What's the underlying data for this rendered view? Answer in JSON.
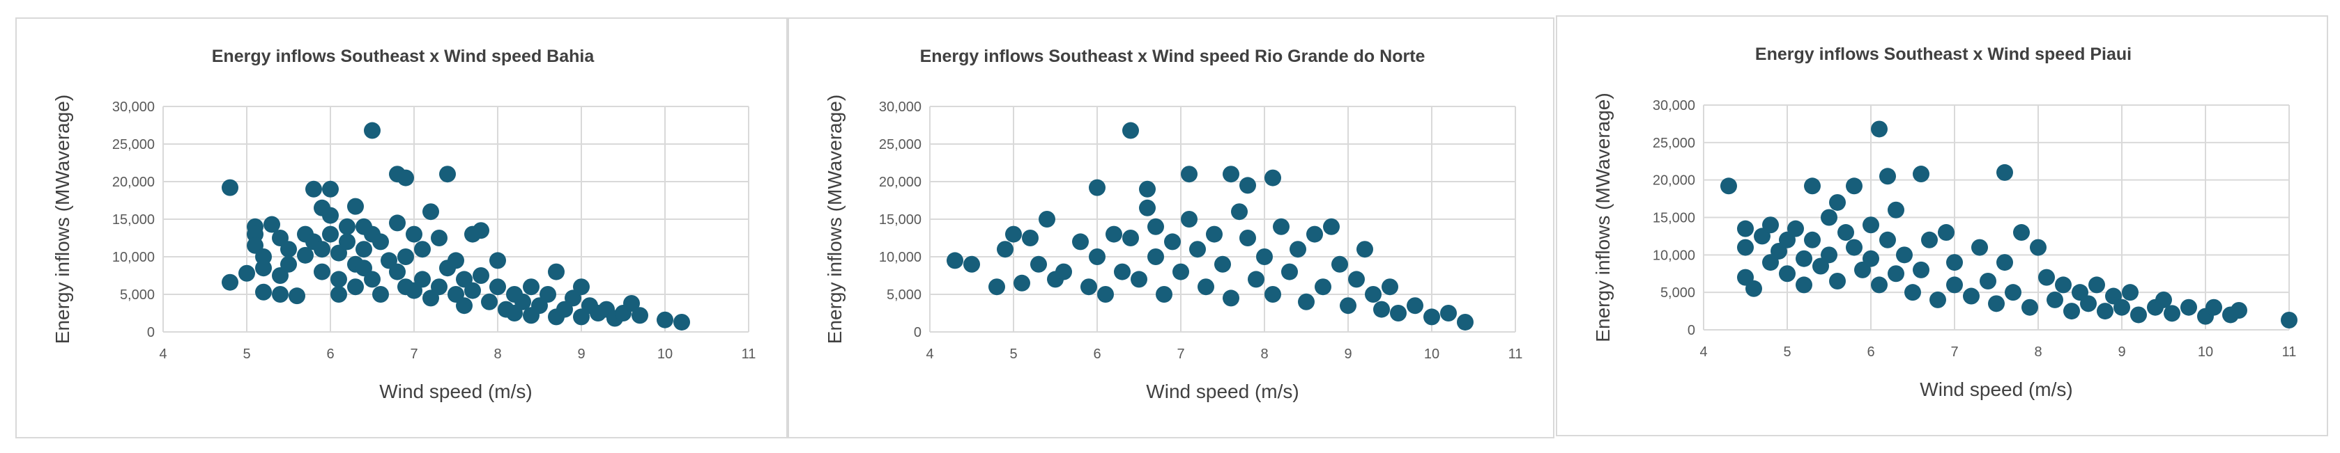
{
  "style": {
    "marker_color": "#175e7a",
    "gridline_color": "#d9d9d9",
    "text_color": "#404040"
  },
  "chart_data": [
    {
      "type": "scatter",
      "title": "Energy inflows Southeast x Wind speed Bahia",
      "xlabel": "Wind speed (m/s)",
      "ylabel": "Energy inflows (MWaverage)",
      "xlim": [
        4,
        11
      ],
      "ylim": [
        0,
        30000
      ],
      "xticks": [
        "4",
        "5",
        "6",
        "7",
        "8",
        "9",
        "10",
        "11"
      ],
      "yticks": [
        "0",
        "5,000",
        "10,000",
        "15,000",
        "20,000",
        "25,000",
        "30,000"
      ],
      "grid": true,
      "legend": "none",
      "points": [
        [
          4.8,
          19200
        ],
        [
          4.8,
          6600
        ],
        [
          5.0,
          7800
        ],
        [
          5.1,
          14000
        ],
        [
          5.1,
          13000
        ],
        [
          5.1,
          11500
        ],
        [
          5.2,
          10000
        ],
        [
          5.2,
          8500
        ],
        [
          5.3,
          14300
        ],
        [
          5.2,
          5300
        ],
        [
          5.4,
          12500
        ],
        [
          5.4,
          7500
        ],
        [
          5.4,
          5000
        ],
        [
          5.5,
          11000
        ],
        [
          5.5,
          9000
        ],
        [
          5.6,
          4800
        ],
        [
          5.7,
          13000
        ],
        [
          5.7,
          10200
        ],
        [
          5.8,
          19000
        ],
        [
          5.8,
          12000
        ],
        [
          5.9,
          16500
        ],
        [
          5.9,
          11000
        ],
        [
          5.9,
          8000
        ],
        [
          6.0,
          19000
        ],
        [
          6.0,
          15500
        ],
        [
          6.0,
          13000
        ],
        [
          6.1,
          10500
        ],
        [
          6.1,
          7000
        ],
        [
          6.1,
          5000
        ],
        [
          6.2,
          14000
        ],
        [
          6.2,
          12000
        ],
        [
          6.3,
          9000
        ],
        [
          6.3,
          6000
        ],
        [
          6.3,
          16700
        ],
        [
          6.4,
          14000
        ],
        [
          6.4,
          11000
        ],
        [
          6.4,
          8500
        ],
        [
          6.5,
          26800
        ],
        [
          6.5,
          13000
        ],
        [
          6.5,
          7000
        ],
        [
          6.6,
          12000
        ],
        [
          6.6,
          5000
        ],
        [
          6.7,
          9500
        ],
        [
          6.8,
          21000
        ],
        [
          6.8,
          14500
        ],
        [
          6.8,
          8000
        ],
        [
          6.9,
          20500
        ],
        [
          6.9,
          10000
        ],
        [
          6.9,
          6000
        ],
        [
          7.0,
          13000
        ],
        [
          7.0,
          5500
        ],
        [
          7.1,
          11000
        ],
        [
          7.1,
          7000
        ],
        [
          7.2,
          16000
        ],
        [
          7.2,
          4500
        ],
        [
          7.3,
          12500
        ],
        [
          7.3,
          6000
        ],
        [
          7.4,
          21000
        ],
        [
          7.4,
          8500
        ],
        [
          7.5,
          9500
        ],
        [
          7.5,
          5000
        ],
        [
          7.6,
          7000
        ],
        [
          7.6,
          3500
        ],
        [
          7.7,
          13000
        ],
        [
          7.7,
          5500
        ],
        [
          7.8,
          13500
        ],
        [
          7.8,
          7500
        ],
        [
          7.9,
          4000
        ],
        [
          8.0,
          9500
        ],
        [
          8.0,
          6000
        ],
        [
          8.1,
          3000
        ],
        [
          8.2,
          5000
        ],
        [
          8.2,
          2500
        ],
        [
          8.3,
          4000
        ],
        [
          8.4,
          6000
        ],
        [
          8.4,
          2200
        ],
        [
          8.5,
          3500
        ],
        [
          8.6,
          5000
        ],
        [
          8.7,
          8000
        ],
        [
          8.7,
          2000
        ],
        [
          8.8,
          3000
        ],
        [
          8.9,
          4500
        ],
        [
          9.0,
          6000
        ],
        [
          9.0,
          2000
        ],
        [
          9.1,
          3500
        ],
        [
          9.2,
          2500
        ],
        [
          9.3,
          3000
        ],
        [
          9.4,
          1800
        ],
        [
          9.5,
          2500
        ],
        [
          9.6,
          3800
        ],
        [
          9.7,
          2200
        ],
        [
          10.0,
          1600
        ],
        [
          10.2,
          1300
        ]
      ]
    },
    {
      "type": "scatter",
      "title": "Energy inflows Southeast x Wind speed Rio Grande do Norte",
      "xlabel": "Wind speed (m/s)",
      "ylabel": "Energy inflows (MWaverage)",
      "xlim": [
        4,
        11
      ],
      "ylim": [
        0,
        30000
      ],
      "xticks": [
        "4",
        "5",
        "6",
        "7",
        "8",
        "9",
        "10",
        "11"
      ],
      "yticks": [
        "0",
        "5,000",
        "10,000",
        "15,000",
        "20,000",
        "25,000",
        "30,000"
      ],
      "grid": true,
      "legend": "none",
      "points": [
        [
          4.3,
          9500
        ],
        [
          4.5,
          9000
        ],
        [
          4.8,
          6000
        ],
        [
          4.9,
          11000
        ],
        [
          5.0,
          13000
        ],
        [
          5.1,
          6500
        ],
        [
          5.2,
          12500
        ],
        [
          5.3,
          9000
        ],
        [
          5.4,
          15000
        ],
        [
          5.5,
          7000
        ],
        [
          5.6,
          8000
        ],
        [
          5.8,
          12000
        ],
        [
          5.9,
          6000
        ],
        [
          6.0,
          19200
        ],
        [
          6.0,
          10000
        ],
        [
          6.1,
          5000
        ],
        [
          6.2,
          13000
        ],
        [
          6.3,
          8000
        ],
        [
          6.4,
          26800
        ],
        [
          6.4,
          12500
        ],
        [
          6.5,
          7000
        ],
        [
          6.6,
          19000
        ],
        [
          6.6,
          16500
        ],
        [
          6.7,
          14000
        ],
        [
          6.7,
          10000
        ],
        [
          6.8,
          5000
        ],
        [
          6.9,
          12000
        ],
        [
          7.0,
          8000
        ],
        [
          7.1,
          21000
        ],
        [
          7.1,
          15000
        ],
        [
          7.2,
          11000
        ],
        [
          7.3,
          6000
        ],
        [
          7.4,
          13000
        ],
        [
          7.5,
          9000
        ],
        [
          7.6,
          21000
        ],
        [
          7.6,
          4500
        ],
        [
          7.7,
          16000
        ],
        [
          7.8,
          19500
        ],
        [
          7.8,
          12500
        ],
        [
          7.9,
          7000
        ],
        [
          8.0,
          10000
        ],
        [
          8.1,
          20500
        ],
        [
          8.1,
          5000
        ],
        [
          8.2,
          14000
        ],
        [
          8.3,
          8000
        ],
        [
          8.4,
          11000
        ],
        [
          8.5,
          4000
        ],
        [
          8.6,
          13000
        ],
        [
          8.7,
          6000
        ],
        [
          8.8,
          14000
        ],
        [
          8.9,
          9000
        ],
        [
          9.0,
          3500
        ],
        [
          9.1,
          7000
        ],
        [
          9.2,
          11000
        ],
        [
          9.3,
          5000
        ],
        [
          9.4,
          3000
        ],
        [
          9.5,
          6000
        ],
        [
          9.6,
          2500
        ],
        [
          9.8,
          3500
        ],
        [
          10.0,
          2000
        ],
        [
          10.2,
          2500
        ],
        [
          10.4,
          1300
        ]
      ]
    },
    {
      "type": "scatter",
      "title": "Energy inflows Southeast x Wind speed Piaui",
      "xlabel": "Wind speed (m/s)",
      "ylabel": "Energy inflows (MWaverage)",
      "xlim": [
        4,
        11
      ],
      "ylim": [
        0,
        30000
      ],
      "xticks": [
        "4",
        "5",
        "6",
        "7",
        "8",
        "9",
        "10",
        "11"
      ],
      "yticks": [
        "0",
        "5,000",
        "10,000",
        "15,000",
        "20,000",
        "25,000",
        "30,000"
      ],
      "grid": true,
      "legend": "none",
      "points": [
        [
          4.3,
          19200
        ],
        [
          4.5,
          13500
        ],
        [
          4.5,
          11000
        ],
        [
          4.5,
          7000
        ],
        [
          4.6,
          5500
        ],
        [
          4.7,
          12500
        ],
        [
          4.8,
          14000
        ],
        [
          4.8,
          9000
        ],
        [
          4.9,
          10500
        ],
        [
          5.0,
          12000
        ],
        [
          5.0,
          7500
        ],
        [
          5.1,
          13500
        ],
        [
          5.2,
          9500
        ],
        [
          5.2,
          6000
        ],
        [
          5.3,
          19200
        ],
        [
          5.3,
          12000
        ],
        [
          5.4,
          8500
        ],
        [
          5.5,
          15000
        ],
        [
          5.5,
          10000
        ],
        [
          5.6,
          17000
        ],
        [
          5.6,
          6500
        ],
        [
          5.7,
          13000
        ],
        [
          5.8,
          19200
        ],
        [
          5.8,
          11000
        ],
        [
          5.9,
          8000
        ],
        [
          6.0,
          14000
        ],
        [
          6.0,
          9500
        ],
        [
          6.1,
          26800
        ],
        [
          6.1,
          6000
        ],
        [
          6.2,
          20500
        ],
        [
          6.2,
          12000
        ],
        [
          6.3,
          16000
        ],
        [
          6.3,
          7500
        ],
        [
          6.4,
          10000
        ],
        [
          6.5,
          5000
        ],
        [
          6.6,
          20800
        ],
        [
          6.6,
          8000
        ],
        [
          6.7,
          12000
        ],
        [
          6.8,
          4000
        ],
        [
          6.9,
          13000
        ],
        [
          7.0,
          6000
        ],
        [
          7.0,
          9000
        ],
        [
          7.2,
          4500
        ],
        [
          7.3,
          11000
        ],
        [
          7.4,
          6500
        ],
        [
          7.5,
          3500
        ],
        [
          7.6,
          21000
        ],
        [
          7.6,
          9000
        ],
        [
          7.7,
          5000
        ],
        [
          7.8,
          13000
        ],
        [
          7.9,
          3000
        ],
        [
          8.0,
          11000
        ],
        [
          8.1,
          7000
        ],
        [
          8.2,
          4000
        ],
        [
          8.3,
          6000
        ],
        [
          8.4,
          2500
        ],
        [
          8.5,
          5000
        ],
        [
          8.6,
          3500
        ],
        [
          8.7,
          6000
        ],
        [
          8.8,
          2500
        ],
        [
          8.9,
          4500
        ],
        [
          9.0,
          3000
        ],
        [
          9.1,
          5000
        ],
        [
          9.2,
          2000
        ],
        [
          9.4,
          3000
        ],
        [
          9.5,
          4000
        ],
        [
          9.6,
          2200
        ],
        [
          9.8,
          3000
        ],
        [
          10.0,
          1800
        ],
        [
          10.1,
          3000
        ],
        [
          10.3,
          2000
        ],
        [
          10.4,
          2600
        ],
        [
          11.0,
          1300
        ]
      ]
    }
  ]
}
